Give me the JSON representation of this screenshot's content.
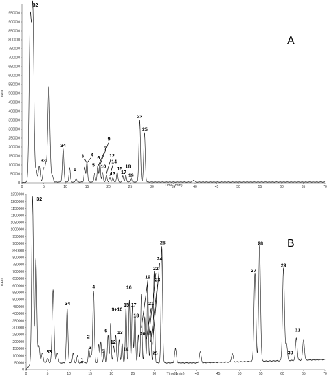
{
  "chart_data": [
    {
      "type": "line",
      "panel_label": "A",
      "xlabel": "Time (min)",
      "ylabel": "uAU",
      "xlim": [
        0,
        70
      ],
      "ylim": [
        0,
        1000000
      ],
      "x_ticks": [
        0,
        5,
        10,
        15,
        20,
        25,
        30,
        35,
        40,
        45,
        50,
        55,
        60,
        65,
        70
      ],
      "y_ticks": [
        0,
        50000,
        100000,
        150000,
        200000,
        250000,
        300000,
        350000,
        400000,
        450000,
        500000,
        550000,
        600000,
        650000,
        700000,
        750000,
        800000,
        850000,
        900000,
        950000
      ],
      "peaks": [
        {
          "x": 1.9,
          "y": 890000,
          "w": 0.25
        },
        {
          "x": 2.5,
          "y": 960000,
          "w": 0.25
        },
        {
          "x": 3.3,
          "y": 70000,
          "w": 0.2
        },
        {
          "x": 4.0,
          "y": 95000,
          "w": 0.2
        },
        {
          "x": 5.0,
          "y": 80000,
          "w": 0.2
        },
        {
          "x": 5.5,
          "y": 100000,
          "w": 0.2
        },
        {
          "x": 6.2,
          "y": 540000,
          "w": 0.25
        },
        {
          "x": 7.0,
          "y": 40000,
          "w": 0.2
        },
        {
          "x": 9.5,
          "y": 190000,
          "w": 0.18
        },
        {
          "x": 11.0,
          "y": 85000,
          "w": 0.15
        },
        {
          "x": 12.5,
          "y": 25000,
          "w": 0.15
        },
        {
          "x": 14.5,
          "y": 85000,
          "w": 0.15
        },
        {
          "x": 15.0,
          "y": 120000,
          "w": 0.15
        },
        {
          "x": 16.8,
          "y": 55000,
          "w": 0.15
        },
        {
          "x": 17.5,
          "y": 95000,
          "w": 0.15
        },
        {
          "x": 18.0,
          "y": 110000,
          "w": 0.15
        },
        {
          "x": 18.6,
          "y": 60000,
          "w": 0.15
        },
        {
          "x": 19.5,
          "y": 45000,
          "w": 0.15
        },
        {
          "x": 20.3,
          "y": 30000,
          "w": 0.15
        },
        {
          "x": 21.0,
          "y": 30000,
          "w": 0.15
        },
        {
          "x": 22.0,
          "y": 60000,
          "w": 0.15
        },
        {
          "x": 23.3,
          "y": 40000,
          "w": 0.15
        },
        {
          "x": 24.0,
          "y": 45000,
          "w": 0.15
        },
        {
          "x": 25.2,
          "y": 30000,
          "w": 0.15
        },
        {
          "x": 27.2,
          "y": 350000,
          "w": 0.18
        },
        {
          "x": 28.3,
          "y": 280000,
          "w": 0.18
        },
        {
          "x": 39.7,
          "y": 15000,
          "w": 0.2
        }
      ],
      "labels": [
        {
          "text": "32",
          "x": 3.1,
          "y": 985000
        },
        {
          "text": "34",
          "x": 9.5,
          "y": 200000
        },
        {
          "text": "33",
          "x": 4.9,
          "y": 115000
        },
        {
          "text": "3",
          "x": 14.0,
          "y": 140000
        },
        {
          "text": "4",
          "x": 16.2,
          "y": 148000
        },
        {
          "text": "9",
          "x": 20.1,
          "y": 236000
        },
        {
          "text": "7",
          "x": 19.3,
          "y": 182000
        },
        {
          "text": "6",
          "x": 17.7,
          "y": 130000
        },
        {
          "text": "12",
          "x": 20.8,
          "y": 142000
        },
        {
          "text": "5",
          "x": 16.5,
          "y": 90000
        },
        {
          "text": "14",
          "x": 21.3,
          "y": 110000
        },
        {
          "text": "10",
          "x": 18.8,
          "y": 82000
        },
        {
          "text": "15",
          "x": 22.6,
          "y": 70000
        },
        {
          "text": "18",
          "x": 24.5,
          "y": 82000
        },
        {
          "text": "13",
          "x": 21.0,
          "y": 42000
        },
        {
          "text": "17",
          "x": 23.5,
          "y": 50000
        },
        {
          "text": "19",
          "x": 25.2,
          "y": 33000
        },
        {
          "text": "1",
          "x": 12.2,
          "y": 65000
        },
        {
          "text": "23",
          "x": 27.2,
          "y": 362000
        },
        {
          "text": "25",
          "x": 28.4,
          "y": 290000
        }
      ],
      "leaders": [
        {
          "x1": 14.5,
          "y1": 132000,
          "x2": 15.0,
          "y2": 112000
        },
        {
          "x1": 16.0,
          "y1": 142000,
          "x2": 15.0,
          "y2": 112000
        },
        {
          "x1": 20.0,
          "y1": 224000,
          "x2": 18.0,
          "y2": 100000
        },
        {
          "x1": 19.0,
          "y1": 170000,
          "x2": 17.5,
          "y2": 90000
        },
        {
          "x1": 20.5,
          "y1": 132000,
          "x2": 19.5,
          "y2": 50000
        },
        {
          "x1": 21.0,
          "y1": 100000,
          "x2": 20.3,
          "y2": 40000
        }
      ]
    },
    {
      "type": "line",
      "panel_label": "B",
      "xlabel": "Time (min)",
      "ylabel": "uAU",
      "xlim": [
        0,
        70
      ],
      "ylim": [
        0,
        1250000
      ],
      "x_ticks": [
        0,
        5,
        10,
        15,
        20,
        25,
        30,
        35,
        40,
        45,
        50,
        55,
        60,
        65,
        70
      ],
      "y_ticks": [
        0,
        50000,
        100000,
        150000,
        200000,
        250000,
        300000,
        350000,
        400000,
        450000,
        500000,
        550000,
        600000,
        650000,
        700000,
        750000,
        800000,
        850000,
        900000,
        950000,
        1000000,
        1050000,
        1100000,
        1150000,
        1200000,
        1250000
      ],
      "peaks": [
        {
          "x": 1.5,
          "y": 1240000,
          "w": 0.2
        },
        {
          "x": 2.3,
          "y": 800000,
          "w": 0.2
        },
        {
          "x": 3.0,
          "y": 170000,
          "w": 0.2
        },
        {
          "x": 3.8,
          "y": 120000,
          "w": 0.2
        },
        {
          "x": 5.0,
          "y": 80000,
          "w": 0.2
        },
        {
          "x": 6.3,
          "y": 570000,
          "w": 0.22
        },
        {
          "x": 7.3,
          "y": 120000,
          "w": 0.2
        },
        {
          "x": 9.6,
          "y": 440000,
          "w": 0.18
        },
        {
          "x": 11.0,
          "y": 120000,
          "w": 0.15
        },
        {
          "x": 12.0,
          "y": 100000,
          "w": 0.15
        },
        {
          "x": 13.5,
          "y": 60000,
          "w": 0.15
        },
        {
          "x": 14.7,
          "y": 150000,
          "w": 0.15
        },
        {
          "x": 15.2,
          "y": 110000,
          "w": 0.15
        },
        {
          "x": 15.8,
          "y": 560000,
          "w": 0.18
        },
        {
          "x": 17.0,
          "y": 180000,
          "w": 0.15
        },
        {
          "x": 17.5,
          "y": 200000,
          "w": 0.15
        },
        {
          "x": 18.3,
          "y": 150000,
          "w": 0.15
        },
        {
          "x": 19.2,
          "y": 250000,
          "w": 0.15
        },
        {
          "x": 19.8,
          "y": 330000,
          "w": 0.15
        },
        {
          "x": 20.5,
          "y": 170000,
          "w": 0.15
        },
        {
          "x": 21.0,
          "y": 250000,
          "w": 0.15
        },
        {
          "x": 21.8,
          "y": 220000,
          "w": 0.15
        },
        {
          "x": 22.5,
          "y": 190000,
          "w": 0.15
        },
        {
          "x": 23.4,
          "y": 450000,
          "w": 0.15
        },
        {
          "x": 24.2,
          "y": 500000,
          "w": 0.15
        },
        {
          "x": 24.9,
          "y": 460000,
          "w": 0.15
        },
        {
          "x": 25.5,
          "y": 420000,
          "w": 0.15
        },
        {
          "x": 26.3,
          "y": 250000,
          "w": 0.15
        },
        {
          "x": 27.0,
          "y": 540000,
          "w": 0.15
        },
        {
          "x": 27.8,
          "y": 380000,
          "w": 0.15
        },
        {
          "x": 28.5,
          "y": 640000,
          "w": 0.15
        },
        {
          "x": 29.2,
          "y": 280000,
          "w": 0.15
        },
        {
          "x": 30.0,
          "y": 700000,
          "w": 0.15
        },
        {
          "x": 31.8,
          "y": 880000,
          "w": 0.18
        },
        {
          "x": 35.0,
          "y": 150000,
          "w": 0.2
        },
        {
          "x": 40.8,
          "y": 130000,
          "w": 0.2
        },
        {
          "x": 48.3,
          "y": 110000,
          "w": 0.2
        },
        {
          "x": 53.6,
          "y": 680000,
          "w": 0.22
        },
        {
          "x": 54.7,
          "y": 880000,
          "w": 0.22
        },
        {
          "x": 60.3,
          "y": 710000,
          "w": 0.22
        },
        {
          "x": 61.0,
          "y": 170000,
          "w": 0.2
        },
        {
          "x": 63.3,
          "y": 210000,
          "w": 0.2
        },
        {
          "x": 65.0,
          "y": 200000,
          "w": 0.2
        }
      ],
      "labels": [
        {
          "text": "32",
          "x": 3.1,
          "y": 1205000
        },
        {
          "text": "33",
          "x": 5.4,
          "y": 117000
        },
        {
          "text": "34",
          "x": 9.7,
          "y": 460000
        },
        {
          "text": "1",
          "x": 13.1,
          "y": 58000
        },
        {
          "text": "2",
          "x": 14.6,
          "y": 222000
        },
        {
          "text": "3",
          "x": 15.0,
          "y": 147000
        },
        {
          "text": "4",
          "x": 15.8,
          "y": 580000
        },
        {
          "text": "5",
          "x": 18.0,
          "y": 120000
        },
        {
          "text": "6",
          "x": 18.7,
          "y": 266000
        },
        {
          "text": "9+10",
          "x": 21.3,
          "y": 420000
        },
        {
          "text": "12",
          "x": 20.4,
          "y": 186000
        },
        {
          "text": "13",
          "x": 22.0,
          "y": 255000
        },
        {
          "text": "14",
          "x": 23.4,
          "y": 135000
        },
        {
          "text": "15",
          "x": 23.5,
          "y": 450000
        },
        {
          "text": "16",
          "x": 24.1,
          "y": 575000
        },
        {
          "text": "17",
          "x": 25.2,
          "y": 450000
        },
        {
          "text": "18",
          "x": 25.8,
          "y": 375000
        },
        {
          "text": "19",
          "x": 28.5,
          "y": 650000
        },
        {
          "text": "20",
          "x": 27.3,
          "y": 245000
        },
        {
          "text": "21",
          "x": 29.3,
          "y": 460000
        },
        {
          "text": "22",
          "x": 30.4,
          "y": 710000
        },
        {
          "text": "23",
          "x": 30.8,
          "y": 630000
        },
        {
          "text": "24",
          "x": 31.3,
          "y": 780000
        },
        {
          "text": "25",
          "x": 30.2,
          "y": 105000
        },
        {
          "text": "26",
          "x": 32.0,
          "y": 895000
        },
        {
          "text": "27",
          "x": 53.3,
          "y": 695000
        },
        {
          "text": "28",
          "x": 54.9,
          "y": 890000
        },
        {
          "text": "29",
          "x": 60.3,
          "y": 732000
        },
        {
          "text": "30",
          "x": 61.9,
          "y": 110000
        },
        {
          "text": "31",
          "x": 63.6,
          "y": 272000
        }
      ],
      "leaders": [
        {
          "x1": 28.5,
          "y1": 630000,
          "x2": 27.0,
          "y2": 300000
        },
        {
          "x1": 29.3,
          "y1": 440000,
          "x2": 28.2,
          "y2": 220000
        },
        {
          "x1": 30.4,
          "y1": 690000,
          "x2": 28.8,
          "y2": 250000
        },
        {
          "x1": 30.8,
          "y1": 610000,
          "x2": 29.2,
          "y2": 200000
        },
        {
          "x1": 31.3,
          "y1": 760000,
          "x2": 29.6,
          "y2": 180000
        }
      ]
    }
  ]
}
